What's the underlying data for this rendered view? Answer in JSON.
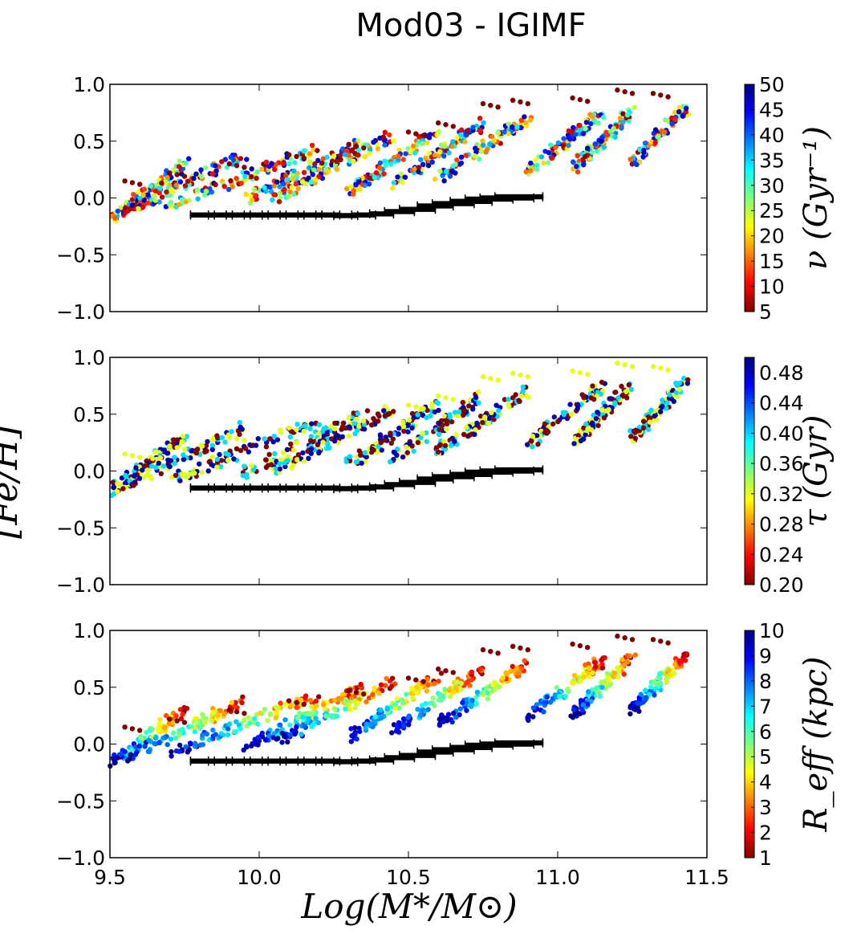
{
  "chart_data": {
    "type": "scatter",
    "title": "Mod03 - IGIMF",
    "xlabel": "Log(M*/M⊙)",
    "ylabel": "[Fe/H]",
    "xlim": [
      9.5,
      11.5
    ],
    "ylim": [
      -1.0,
      1.0
    ],
    "xticks": [
      9.5,
      10.0,
      10.5,
      11.0,
      11.5
    ],
    "xtick_labels": [
      "9.5",
      "10.0",
      "10.5",
      "11.0",
      "11.5"
    ],
    "yticks": [
      1.0,
      0.5,
      0.0,
      -0.5,
      -1.0
    ],
    "ytick_labels": [
      "1.0",
      "0.5",
      "0.0",
      "−0.5",
      "−1.0"
    ],
    "colormap": "jet",
    "colormap_stops": [
      "#7f0000",
      "#ff0000",
      "#ff7f00",
      "#ffff00",
      "#7fff7f",
      "#00ffff",
      "#007fff",
      "#0000ff",
      "#00007f"
    ],
    "observed_relation": {
      "description": "black error bars (observational [Fe/H]-mass relation)",
      "color": "#000000",
      "points": [
        {
          "x": 9.81,
          "y": -0.15,
          "xerr": 0.04
        },
        {
          "x": 9.87,
          "y": -0.15,
          "xerr": 0.04
        },
        {
          "x": 9.93,
          "y": -0.15,
          "xerr": 0.04
        },
        {
          "x": 9.99,
          "y": -0.15,
          "xerr": 0.04
        },
        {
          "x": 10.05,
          "y": -0.15,
          "xerr": 0.04
        },
        {
          "x": 10.11,
          "y": -0.15,
          "xerr": 0.04
        },
        {
          "x": 10.17,
          "y": -0.15,
          "xerr": 0.04
        },
        {
          "x": 10.23,
          "y": -0.15,
          "xerr": 0.04
        },
        {
          "x": 10.29,
          "y": -0.155,
          "xerr": 0.04
        },
        {
          "x": 10.35,
          "y": -0.15,
          "xerr": 0.04
        },
        {
          "x": 10.41,
          "y": -0.14,
          "xerr": 0.04
        },
        {
          "x": 10.47,
          "y": -0.12,
          "xerr": 0.05
        },
        {
          "x": 10.53,
          "y": -0.1,
          "xerr": 0.06
        },
        {
          "x": 10.59,
          "y": -0.07,
          "xerr": 0.06
        },
        {
          "x": 10.65,
          "y": -0.05,
          "xerr": 0.07
        },
        {
          "x": 10.71,
          "y": -0.03,
          "xerr": 0.07
        },
        {
          "x": 10.77,
          "y": -0.01,
          "xerr": 0.08
        },
        {
          "x": 10.83,
          "y": 0.0,
          "xerr": 0.09
        },
        {
          "x": 10.87,
          "y": 0.01,
          "xerr": 0.08
        }
      ]
    },
    "model_tracks": [
      {
        "x0": 9.5,
        "x1": 9.75,
        "y0": -0.18,
        "y1": 0.3
      },
      {
        "x0": 9.55,
        "x1": 9.95,
        "y0": -0.12,
        "y1": 0.38
      },
      {
        "x0": 9.7,
        "x1": 10.2,
        "y0": -0.08,
        "y1": 0.44
      },
      {
        "x0": 9.95,
        "x1": 10.35,
        "y0": -0.02,
        "y1": 0.5
      },
      {
        "x0": 10.05,
        "x1": 10.45,
        "y0": 0.0,
        "y1": 0.55
      },
      {
        "x0": 10.3,
        "x1": 10.6,
        "y0": 0.05,
        "y1": 0.6
      },
      {
        "x0": 10.45,
        "x1": 10.75,
        "y0": 0.12,
        "y1": 0.66
      },
      {
        "x0": 10.6,
        "x1": 10.9,
        "y0": 0.18,
        "y1": 0.7
      },
      {
        "x0": 10.9,
        "x1": 11.15,
        "y0": 0.24,
        "y1": 0.74
      },
      {
        "x0": 11.05,
        "x1": 11.25,
        "y0": 0.26,
        "y1": 0.76
      },
      {
        "x0": 11.25,
        "x1": 11.43,
        "y0": 0.3,
        "y1": 0.79
      }
    ],
    "upper_envelope": [
      {
        "x": 9.55,
        "y": 0.15
      },
      {
        "x": 9.7,
        "y": 0.22
      },
      {
        "x": 9.9,
        "y": 0.3
      },
      {
        "x": 10.1,
        "y": 0.38
      },
      {
        "x": 10.3,
        "y": 0.47
      },
      {
        "x": 10.5,
        "y": 0.58
      },
      {
        "x": 10.6,
        "y": 0.66
      },
      {
        "x": 10.75,
        "y": 0.83
      },
      {
        "x": 10.85,
        "y": 0.86
      },
      {
        "x": 11.05,
        "y": 0.88
      },
      {
        "x": 11.2,
        "y": 0.95
      },
      {
        "x": 11.32,
        "y": 0.92
      }
    ],
    "panels": [
      {
        "id": "nu",
        "colorbar_label": "ν (Gyr⁻¹)",
        "colorbar_range": [
          5,
          50
        ],
        "colorbar_ticks": [
          5,
          10,
          15,
          20,
          25,
          30,
          35,
          40,
          45,
          50
        ],
        "colorbar_tick_labels": [
          "5",
          "10",
          "15",
          "20",
          "25",
          "30",
          "35",
          "40",
          "45",
          "50"
        ],
        "color_mode": "mixed"
      },
      {
        "id": "tau",
        "colorbar_label": "τ (Gyr)",
        "colorbar_range": [
          0.2,
          0.5
        ],
        "colorbar_ticks": [
          0.2,
          0.24,
          0.28,
          0.32,
          0.36,
          0.4,
          0.44,
          0.48
        ],
        "colorbar_tick_labels": [
          "0.20",
          "0.24",
          "0.28",
          "0.32",
          "0.36",
          "0.40",
          "0.44",
          "0.48"
        ],
        "color_mode": "discrete"
      },
      {
        "id": "reff",
        "colorbar_label": "R_eff (kpc)",
        "colorbar_range": [
          1,
          10
        ],
        "colorbar_ticks": [
          1,
          2,
          3,
          4,
          5,
          6,
          7,
          8,
          9,
          10
        ],
        "colorbar_tick_labels": [
          "1",
          "2",
          "3",
          "4",
          "5",
          "6",
          "7",
          "8",
          "9",
          "10"
        ],
        "color_mode": "gradient"
      }
    ]
  }
}
